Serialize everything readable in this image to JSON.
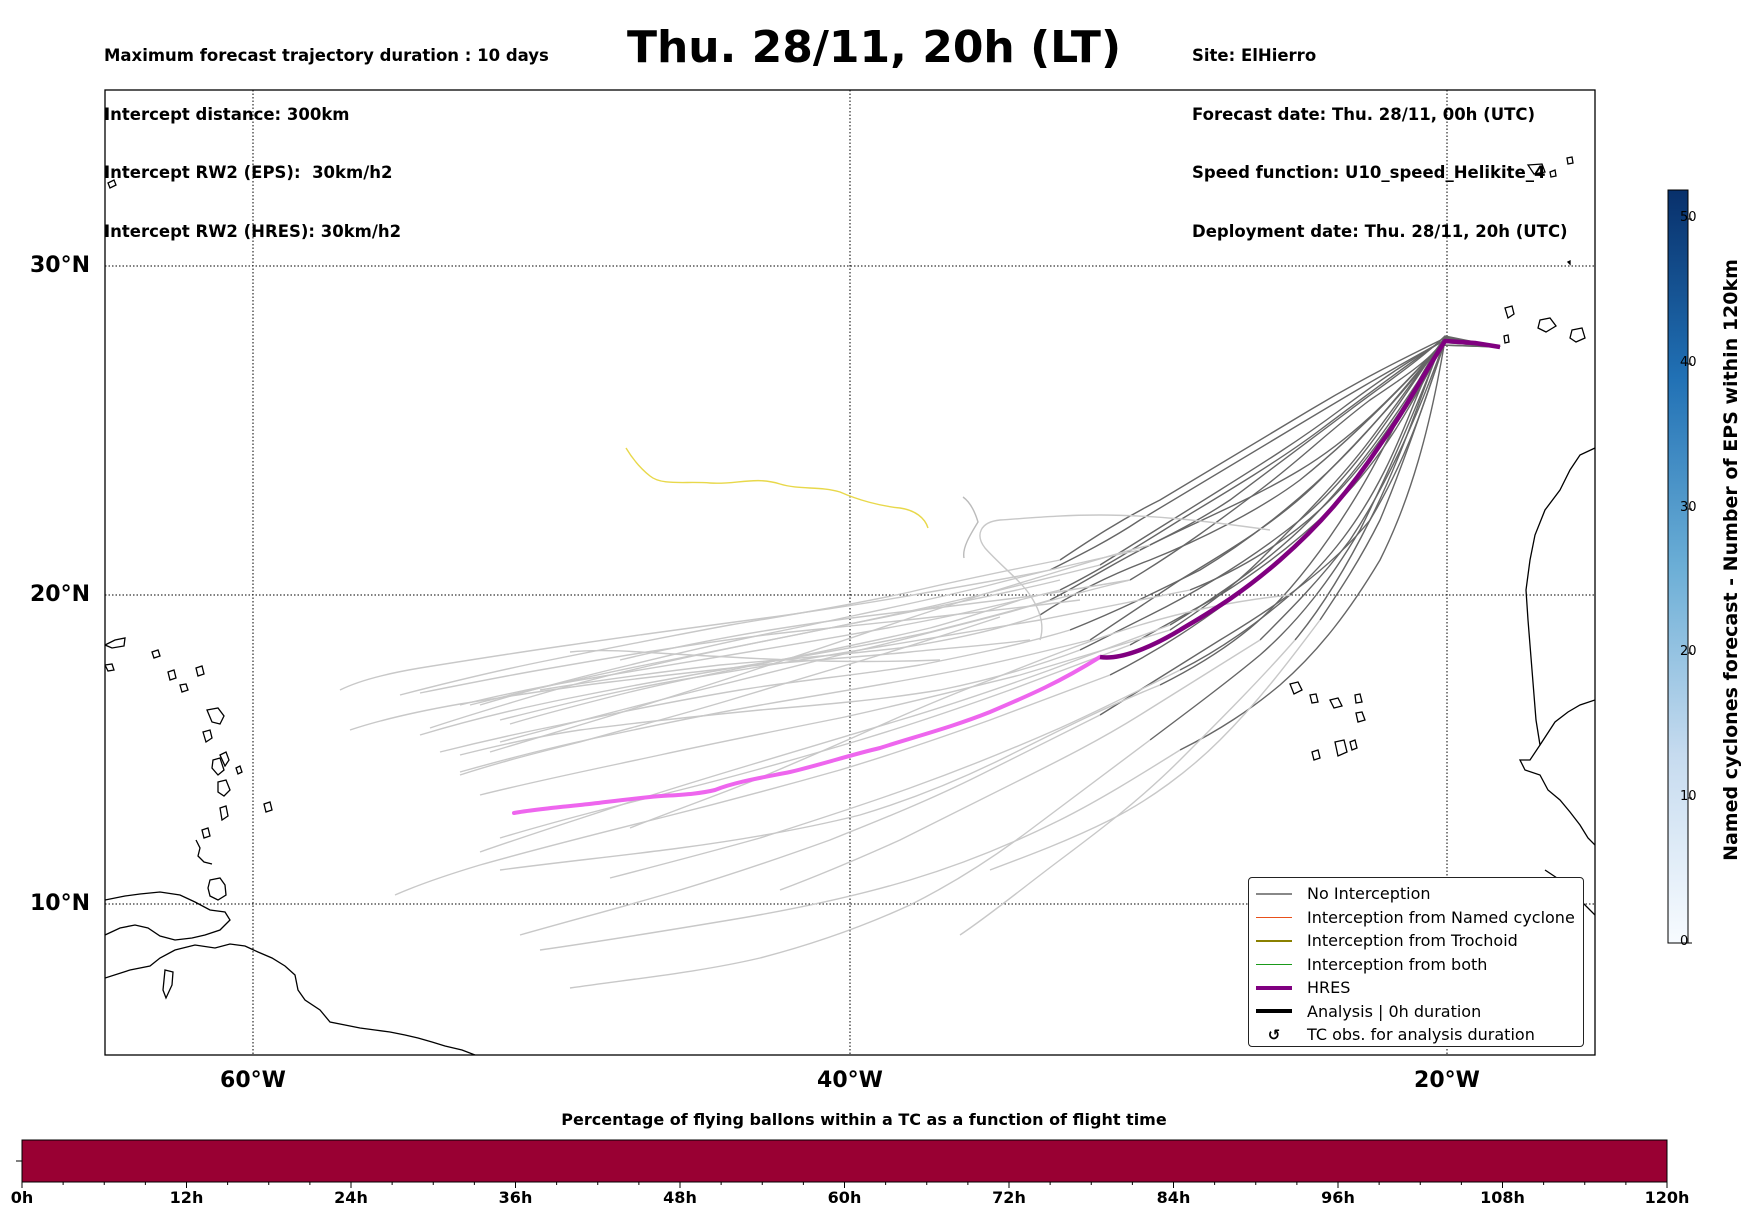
{
  "header": {
    "left_lines": [
      "Maximum forecast trajectory duration : 10 days",
      "Intercept distance: 300km",
      "Intercept RW2 (EPS):  30km/h2",
      "Intercept RW2 (HRES): 30km/h2"
    ],
    "title": "Thu. 28/11, 20h (LT)",
    "right_lines": [
      "Site: ElHierro",
      "Forecast date: Thu. 28/11, 00h (UTC)",
      "Speed function: U10_speed_Helikite_4",
      "Deployment date: Thu. 28/11, 20h (UTC)"
    ]
  },
  "map": {
    "lat_labels": [
      "30°N",
      "20°N",
      "10°N"
    ],
    "lon_labels": [
      "60°W",
      "40°W",
      "20°W"
    ],
    "site": "ElHierro",
    "colors": {
      "no_interception": "#c8c8c8",
      "no_interception_dark": "#666666",
      "hres": "#800080",
      "hres_light": "#ee66ee",
      "tc_track": "#e8d84a"
    }
  },
  "legend": {
    "items": [
      {
        "label": "No Interception",
        "color": "#888888",
        "kind": "line-thin"
      },
      {
        "label": "Interception from Named cyclone",
        "color": "#e8501a",
        "kind": "line-thin"
      },
      {
        "label": "Interception from Trochoid",
        "color": "#8a8000",
        "kind": "line-thin"
      },
      {
        "label": "Interception from both",
        "color": "#1a9a1a",
        "kind": "line-thin"
      },
      {
        "label": "HRES",
        "color": "#800080",
        "kind": "line-thick"
      },
      {
        "label": "Analysis | 0h duration",
        "color": "#000000",
        "kind": "line-thick"
      },
      {
        "label": "TC obs. for analysis duration",
        "color": "#000000",
        "kind": "symbol",
        "symbol": "↺"
      }
    ]
  },
  "colorbar": {
    "title": "Named cyclones forecast - Number of EPS within 120km",
    "ticks": [
      "0",
      "10",
      "20",
      "30",
      "40",
      "50"
    ],
    "range": [
      0,
      52
    ],
    "colormap": "Blues"
  },
  "bottom_bar": {
    "title": "Percentage of flying ballons within a TC as a function of flight time",
    "ticks": [
      "0h",
      "12h",
      "24h",
      "36h",
      "48h",
      "60h",
      "72h",
      "84h",
      "96h",
      "108h",
      "120h"
    ],
    "fill_color": "#990033"
  }
}
